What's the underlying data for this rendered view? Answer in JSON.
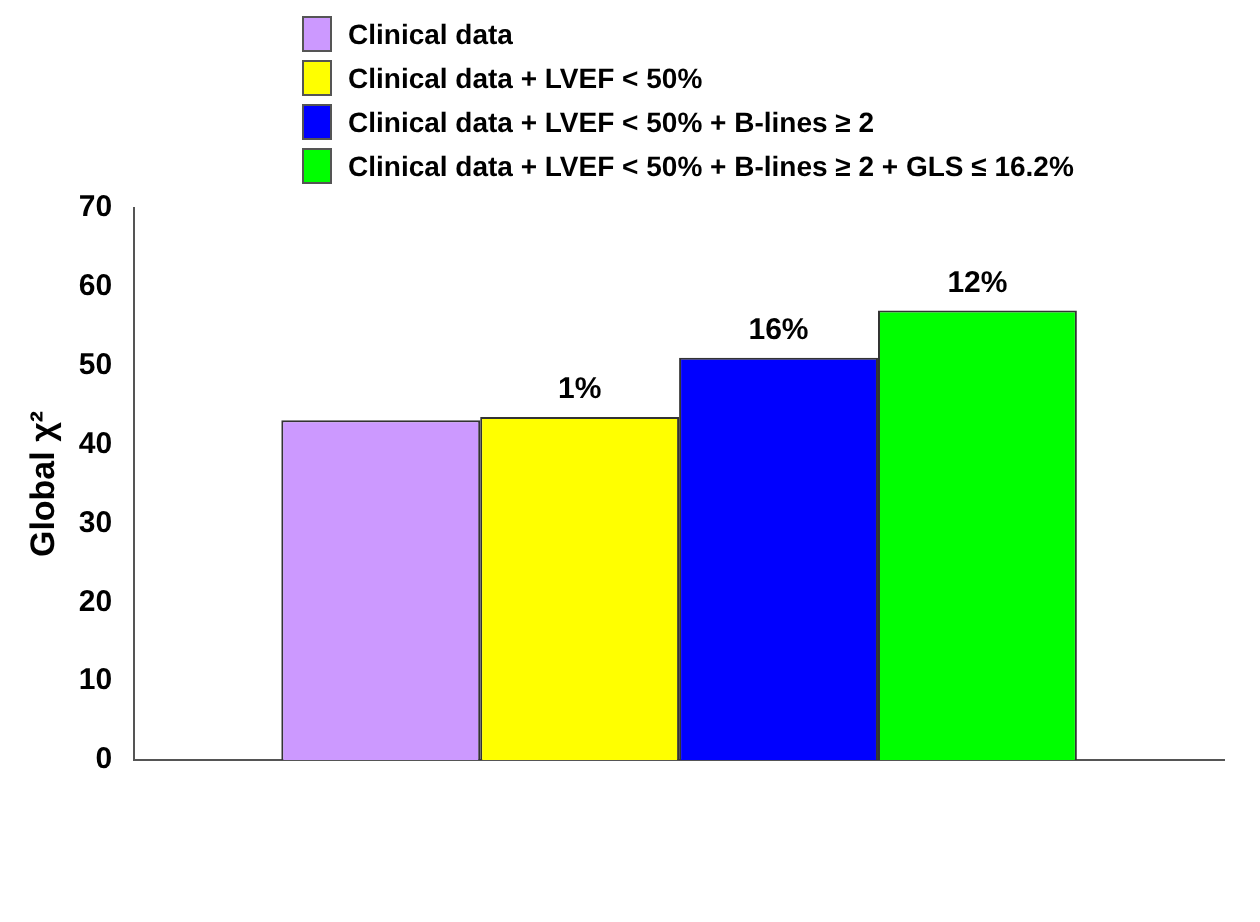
{
  "chart_data": {
    "type": "bar",
    "ylabel": "Global χ²",
    "categories": [
      null
    ],
    "ylim": [
      0,
      70
    ],
    "yticks": [
      0,
      10,
      20,
      30,
      40,
      50,
      60,
      70
    ],
    "grid": false,
    "legend": "top left",
    "series": [
      {
        "name": "Clinical data",
        "color": "#cc99ff",
        "values": [
          43.1
        ]
      },
      {
        "name": "Clinical data + LVEF < 50%",
        "color": "#ffff00",
        "values": [
          43.5
        ]
      },
      {
        "name": "Clinical data + LVEF < 50% + B-lines ≥ 2",
        "color": "#0000ff",
        "values": [
          51
        ]
      },
      {
        "name": "Clinical data + LVEF < 50% + B-lines ≥ 2 + GLS ≤ 16.2%",
        "color": "#00ff00",
        "values": [
          57
        ]
      }
    ],
    "annotations": [
      {
        "text": "1%",
        "y": 43.5
      },
      {
        "text": "16%",
        "y": 51
      },
      {
        "text": "12%",
        "y": 57
      }
    ]
  }
}
